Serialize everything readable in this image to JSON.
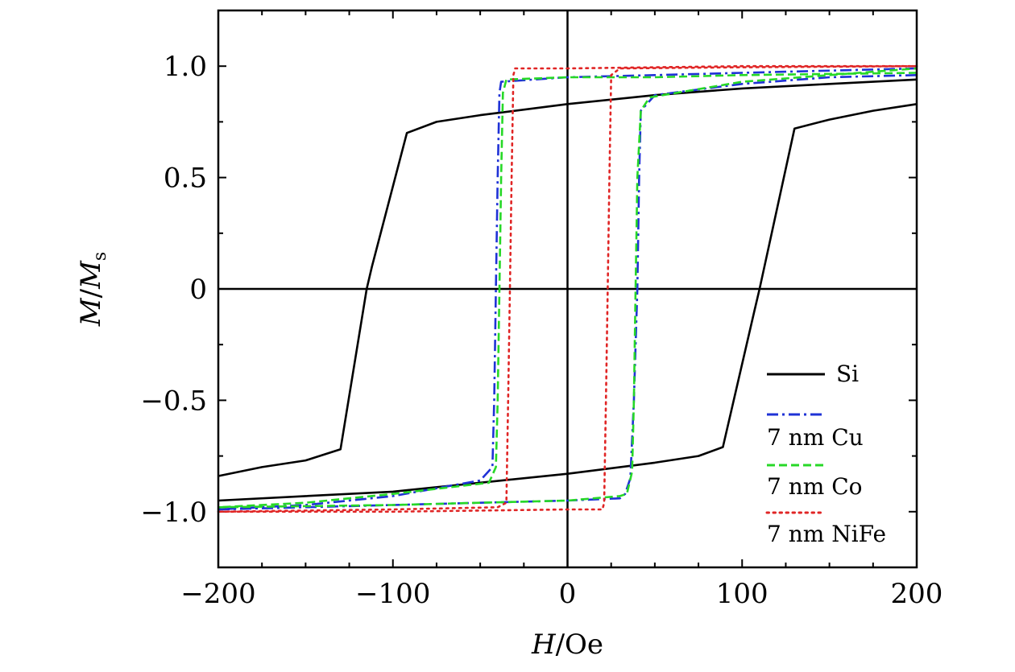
{
  "chart_data": {
    "type": "line",
    "title": "",
    "xlabel": {
      "italic": "H",
      "rest": "/Oe"
    },
    "ylabel": {
      "italic1": "M",
      "slash": "/",
      "italic2": "M",
      "sub": "s"
    },
    "xlim": [
      -200,
      200
    ],
    "ylim": [
      -1.25,
      1.25
    ],
    "xticks": [
      -200,
      -100,
      0,
      100,
      200
    ],
    "xtick_labels": [
      "−200",
      "−100",
      "0",
      "100",
      "200"
    ],
    "yticks": [
      -1.0,
      -0.5,
      0,
      0.5,
      1.0
    ],
    "ytick_labels": [
      "−1.0",
      "−0.5",
      "0",
      "0.5",
      "1.0"
    ],
    "zero_lines": true,
    "grid": false,
    "legend_position": "bottom-right",
    "series": [
      {
        "name": "Si",
        "color": "#000000",
        "style": "solid",
        "descending": [
          [
            200,
            0.94
          ],
          [
            150,
            0.92
          ],
          [
            100,
            0.9
          ],
          [
            50,
            0.87
          ],
          [
            0,
            0.83
          ],
          [
            -50,
            0.78
          ],
          [
            -75,
            0.75
          ],
          [
            -92,
            0.7
          ],
          [
            -112,
            0.1
          ],
          [
            -115,
            0
          ],
          [
            -130,
            -0.72
          ],
          [
            -150,
            -0.77
          ],
          [
            -175,
            -0.8
          ],
          [
            -200,
            -0.84
          ]
        ],
        "ascending": [
          [
            -200,
            -0.95
          ],
          [
            -150,
            -0.93
          ],
          [
            -100,
            -0.91
          ],
          [
            -50,
            -0.87
          ],
          [
            0,
            -0.83
          ],
          [
            50,
            -0.78
          ],
          [
            75,
            -0.75
          ],
          [
            89,
            -0.71
          ],
          [
            107,
            -0.1
          ],
          [
            110,
            0
          ],
          [
            130,
            0.72
          ],
          [
            150,
            0.76
          ],
          [
            175,
            0.8
          ],
          [
            200,
            0.83
          ]
        ]
      },
      {
        "name": "7 nm Cu",
        "color": "#1f32d6",
        "style": "dashdot",
        "descending": [
          [
            200,
            0.99
          ],
          [
            100,
            0.97
          ],
          [
            50,
            0.96
          ],
          [
            0,
            0.95
          ],
          [
            -38,
            0.93
          ],
          [
            -39,
            0.88
          ],
          [
            -40,
            0.5
          ],
          [
            -41,
            0
          ],
          [
            -42,
            -0.5
          ],
          [
            -43,
            -0.8
          ],
          [
            -50,
            -0.86
          ],
          [
            -100,
            -0.93
          ],
          [
            -150,
            -0.97
          ],
          [
            -200,
            -0.99
          ]
        ],
        "ascending": [
          [
            -200,
            -0.99
          ],
          [
            -100,
            -0.97
          ],
          [
            -50,
            -0.96
          ],
          [
            0,
            -0.95
          ],
          [
            30,
            -0.94
          ],
          [
            33,
            -0.92
          ],
          [
            36,
            -0.85
          ],
          [
            38,
            -0.5
          ],
          [
            40,
            0
          ],
          [
            41,
            0.5
          ],
          [
            42,
            0.8
          ],
          [
            50,
            0.87
          ],
          [
            100,
            0.92
          ],
          [
            150,
            0.95
          ],
          [
            200,
            0.96
          ]
        ]
      },
      {
        "name": "7 nm Co",
        "color": "#27d827",
        "style": "dashed",
        "descending": [
          [
            200,
            0.97
          ],
          [
            100,
            0.96
          ],
          [
            50,
            0.95
          ],
          [
            0,
            0.95
          ],
          [
            -35,
            0.94
          ],
          [
            -37,
            0.88
          ],
          [
            -38,
            0.5
          ],
          [
            -39,
            0
          ],
          [
            -40,
            -0.5
          ],
          [
            -41,
            -0.8
          ],
          [
            -45,
            -0.87
          ],
          [
            -100,
            -0.92
          ],
          [
            -150,
            -0.96
          ],
          [
            -200,
            -0.98
          ]
        ],
        "ascending": [
          [
            -200,
            -0.98
          ],
          [
            -100,
            -0.97
          ],
          [
            -50,
            -0.96
          ],
          [
            0,
            -0.95
          ],
          [
            30,
            -0.93
          ],
          [
            34,
            -0.92
          ],
          [
            37,
            -0.82
          ],
          [
            38,
            -0.5
          ],
          [
            39,
            0
          ],
          [
            40,
            0.5
          ],
          [
            42,
            0.8
          ],
          [
            47,
            0.86
          ],
          [
            100,
            0.93
          ],
          [
            150,
            0.96
          ],
          [
            200,
            0.99
          ]
        ]
      },
      {
        "name": "7 nm NiFe",
        "color": "#e02525",
        "style": "dotted",
        "descending": [
          [
            200,
            1.0
          ],
          [
            100,
            1.0
          ],
          [
            0,
            0.99
          ],
          [
            -30,
            0.99
          ],
          [
            -31,
            0.96
          ],
          [
            -32,
            0.5
          ],
          [
            -33,
            0
          ],
          [
            -34,
            -0.5
          ],
          [
            -35,
            -0.96
          ],
          [
            -40,
            -0.98
          ],
          [
            -100,
            -0.99
          ],
          [
            -200,
            -1.0
          ]
        ],
        "ascending": [
          [
            -200,
            -1.0
          ],
          [
            -100,
            -1.0
          ],
          [
            0,
            -0.99
          ],
          [
            20,
            -0.99
          ],
          [
            21,
            -0.96
          ],
          [
            22,
            -0.5
          ],
          [
            23,
            0
          ],
          [
            24,
            0.5
          ],
          [
            25,
            0.96
          ],
          [
            30,
            0.99
          ],
          [
            100,
            0.995
          ],
          [
            200,
            1.0
          ]
        ]
      }
    ]
  }
}
